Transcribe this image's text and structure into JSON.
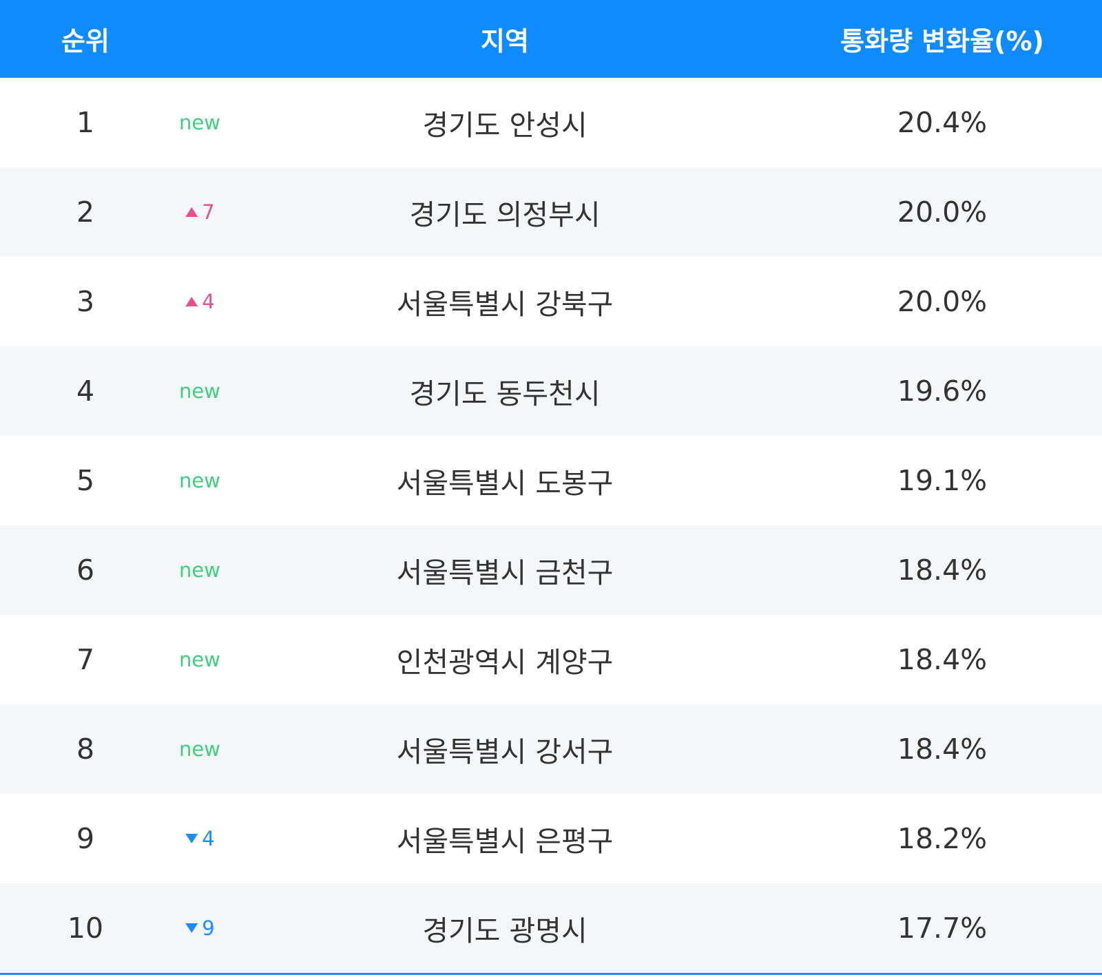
{
  "table": {
    "header": [
      "순위",
      "지역",
      "통화량 변화율(%)"
    ],
    "rows": [
      {
        "rank": "1",
        "change": {
          "label": "new"
        },
        "region": "경기도 안성시",
        "rate": "20.4%"
      },
      {
        "rank": "2",
        "change": {
          "direction": "up",
          "label": "7"
        },
        "region": "경기도 의정부시",
        "rate": "20.0%"
      },
      {
        "rank": "3",
        "change": {
          "direction": "up",
          "label": "4"
        },
        "region": "서울특별시 강북구",
        "rate": "20.0%"
      },
      {
        "rank": "4",
        "change": {
          "label": "new"
        },
        "region": "경기도 동두천시",
        "rate": "19.6%"
      },
      {
        "rank": "5",
        "change": {
          "label": "new"
        },
        "region": "서울특별시 도봉구",
        "rate": "19.1%"
      },
      {
        "rank": "6",
        "change": {
          "label": "new"
        },
        "region": "서울특별시 금천구",
        "rate": "18.4%"
      },
      {
        "rank": "7",
        "change": {
          "label": "new"
        },
        "region": "인천광역시 계양구",
        "rate": "18.4%"
      },
      {
        "rank": "8",
        "change": {
          "label": "new"
        },
        "region": "서울특별시 강서구",
        "rate": "18.4%"
      },
      {
        "rank": "9",
        "change": {
          "direction": "down",
          "label": "4"
        },
        "region": "서울특별시 은평구",
        "rate": "18.2%"
      },
      {
        "rank": "10",
        "change": {
          "direction": "down",
          "label": "9"
        },
        "region": "경기도 광명시",
        "rate": "17.7%"
      }
    ]
  }
}
